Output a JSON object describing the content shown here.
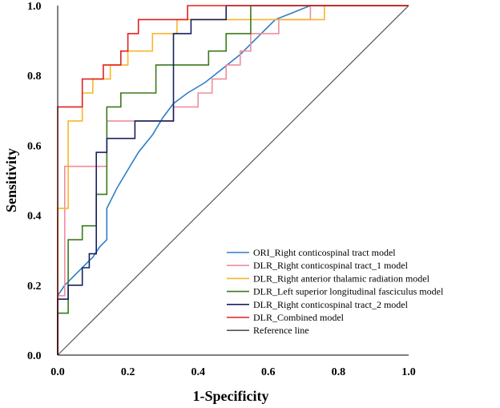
{
  "chart_data": {
    "type": "line",
    "title": "",
    "xlabel": "1-Specificity",
    "ylabel": "Sensitivity",
    "xlim": [
      0,
      1
    ],
    "ylim": [
      0,
      1
    ],
    "x_ticks": [
      "0.0",
      "0.2",
      "0.4",
      "0.6",
      "0.8",
      "1.0"
    ],
    "y_ticks": [
      "0.0",
      "0.2",
      "0.4",
      "0.6",
      "0.8",
      "1.0"
    ],
    "grid": false,
    "legend_position": "bottom-right",
    "series": [
      {
        "name": "ORI_Right conticospinal tract model",
        "color": "#2e7dc8",
        "points": [
          [
            0,
            0.17
          ],
          [
            0.02,
            0.2
          ],
          [
            0.05,
            0.23
          ],
          [
            0.08,
            0.26
          ],
          [
            0.1,
            0.28
          ],
          [
            0.12,
            0.31
          ],
          [
            0.14,
            0.33
          ],
          [
            0.14,
            0.42
          ],
          [
            0.17,
            0.48
          ],
          [
            0.2,
            0.53
          ],
          [
            0.23,
            0.58
          ],
          [
            0.27,
            0.63
          ],
          [
            0.3,
            0.68
          ],
          [
            0.33,
            0.72
          ],
          [
            0.37,
            0.75
          ],
          [
            0.42,
            0.78
          ],
          [
            0.47,
            0.82
          ],
          [
            0.52,
            0.86
          ],
          [
            0.57,
            0.91
          ],
          [
            0.62,
            0.96
          ],
          [
            0.67,
            0.98
          ],
          [
            0.72,
            1.0
          ]
        ]
      },
      {
        "name": "DLR_Right conticospinal tract_1 model",
        "color": "#f08d9c",
        "points": [
          [
            0,
            0.0
          ],
          [
            0,
            0.17
          ],
          [
            0.02,
            0.17
          ],
          [
            0.02,
            0.54
          ],
          [
            0.14,
            0.54
          ],
          [
            0.14,
            0.67
          ],
          [
            0.33,
            0.67
          ],
          [
            0.33,
            0.71
          ],
          [
            0.4,
            0.71
          ],
          [
            0.4,
            0.75
          ],
          [
            0.44,
            0.75
          ],
          [
            0.44,
            0.79
          ],
          [
            0.48,
            0.79
          ],
          [
            0.48,
            0.83
          ],
          [
            0.52,
            0.83
          ],
          [
            0.52,
            0.87
          ],
          [
            0.55,
            0.87
          ],
          [
            0.55,
            0.92
          ],
          [
            0.63,
            0.92
          ],
          [
            0.63,
            0.96
          ],
          [
            0.72,
            0.96
          ],
          [
            0.72,
            1.0
          ],
          [
            1.0,
            1.0
          ]
        ]
      },
      {
        "name": "DLR_Right anterior thalamic radiation model",
        "color": "#f7b52b",
        "points": [
          [
            0,
            0.0
          ],
          [
            0,
            0.42
          ],
          [
            0.03,
            0.42
          ],
          [
            0.03,
            0.67
          ],
          [
            0.07,
            0.67
          ],
          [
            0.07,
            0.75
          ],
          [
            0.1,
            0.75
          ],
          [
            0.1,
            0.79
          ],
          [
            0.15,
            0.79
          ],
          [
            0.15,
            0.83
          ],
          [
            0.2,
            0.83
          ],
          [
            0.2,
            0.87
          ],
          [
            0.27,
            0.87
          ],
          [
            0.27,
            0.92
          ],
          [
            0.34,
            0.92
          ],
          [
            0.34,
            0.96
          ],
          [
            0.62,
            0.96
          ],
          [
            0.62,
            0.96
          ],
          [
            0.76,
            0.96
          ],
          [
            0.76,
            1.0
          ],
          [
            1.0,
            1.0
          ]
        ]
      },
      {
        "name": "DLR_Left superior longitudinal fasciculus model",
        "color": "#3b7a1c",
        "points": [
          [
            0,
            0.0
          ],
          [
            0,
            0.12
          ],
          [
            0.03,
            0.12
          ],
          [
            0.03,
            0.33
          ],
          [
            0.07,
            0.33
          ],
          [
            0.07,
            0.37
          ],
          [
            0.11,
            0.37
          ],
          [
            0.11,
            0.46
          ],
          [
            0.14,
            0.46
          ],
          [
            0.14,
            0.71
          ],
          [
            0.18,
            0.71
          ],
          [
            0.18,
            0.75
          ],
          [
            0.28,
            0.75
          ],
          [
            0.28,
            0.83
          ],
          [
            0.43,
            0.83
          ],
          [
            0.43,
            0.87
          ],
          [
            0.48,
            0.87
          ],
          [
            0.48,
            0.92
          ],
          [
            0.55,
            0.92
          ],
          [
            0.55,
            1.0
          ],
          [
            1.0,
            1.0
          ]
        ]
      },
      {
        "name": "DLR_Right conticospinal tract_2 model",
        "color": "#18215e",
        "points": [
          [
            0,
            0.0
          ],
          [
            0,
            0.16
          ],
          [
            0.03,
            0.16
          ],
          [
            0.03,
            0.2
          ],
          [
            0.07,
            0.2
          ],
          [
            0.07,
            0.25
          ],
          [
            0.09,
            0.25
          ],
          [
            0.09,
            0.29
          ],
          [
            0.11,
            0.29
          ],
          [
            0.11,
            0.58
          ],
          [
            0.14,
            0.58
          ],
          [
            0.14,
            0.62
          ],
          [
            0.22,
            0.62
          ],
          [
            0.22,
            0.67
          ],
          [
            0.33,
            0.67
          ],
          [
            0.33,
            0.92
          ],
          [
            0.38,
            0.92
          ],
          [
            0.38,
            0.96
          ],
          [
            0.48,
            0.96
          ],
          [
            0.48,
            1.0
          ],
          [
            1.0,
            1.0
          ]
        ]
      },
      {
        "name": "DLR_Combined model",
        "color": "#e02020",
        "points": [
          [
            0,
            0.0
          ],
          [
            0,
            0.71
          ],
          [
            0.07,
            0.71
          ],
          [
            0.07,
            0.79
          ],
          [
            0.13,
            0.79
          ],
          [
            0.13,
            0.83
          ],
          [
            0.18,
            0.83
          ],
          [
            0.18,
            0.87
          ],
          [
            0.2,
            0.87
          ],
          [
            0.2,
            0.92
          ],
          [
            0.23,
            0.92
          ],
          [
            0.23,
            0.96
          ],
          [
            0.3,
            0.96
          ],
          [
            0.3,
            0.96
          ],
          [
            0.37,
            0.96
          ],
          [
            0.37,
            1.0
          ],
          [
            1.0,
            1.0
          ]
        ]
      },
      {
        "name": "Reference line",
        "color": "#555555",
        "points": [
          [
            0,
            0
          ],
          [
            1,
            1
          ]
        ]
      }
    ]
  }
}
